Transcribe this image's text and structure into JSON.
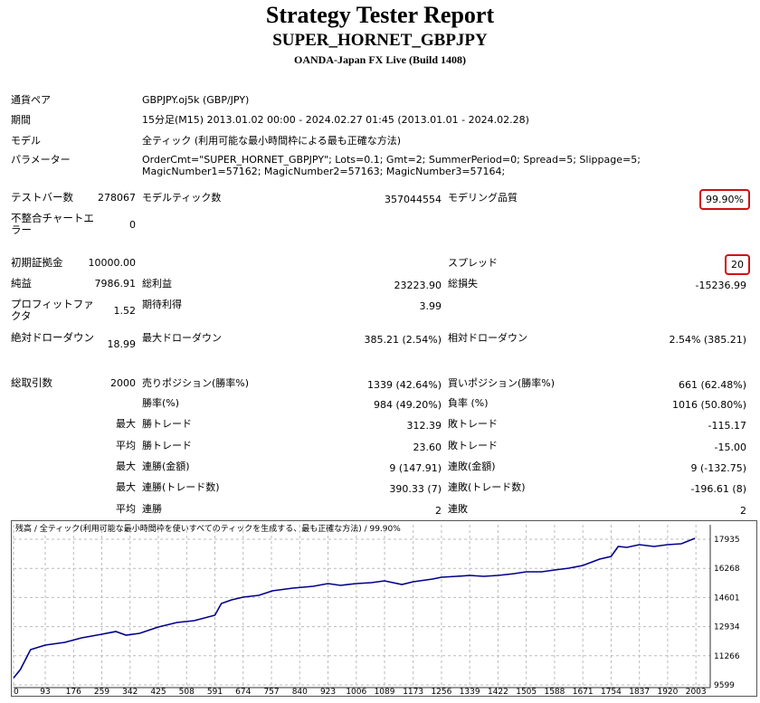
{
  "header": {
    "title": "Strategy Tester Report",
    "subtitle": "SUPER_HORNET_GBPJPY",
    "broker": "OANDA-Japan FX Live (Build 1408)"
  },
  "info": [
    {
      "label": "通貨ペア",
      "text": "GBPJPY.oj5k (GBP/JPY)"
    },
    {
      "label": "期間",
      "text": "15分足(M15) 2013.01.02 00:00 - 2024.02.27 01:45 (2013.01.01 - 2024.02.28)"
    },
    {
      "label": "モデル",
      "text": "全ティック (利用可能な最小時間枠による最も正確な方法)"
    },
    {
      "label": "パラメーター",
      "text": "OrderCmt=\"SUPER_HORNET_GBPJPY\"; Lots=0.1; Gmt=2; SummerPeriod=0; Spread=5; Slippage=5; MagicNumber1=57162; MagicNumber2=57163; MagicNumber3=57164;"
    }
  ],
  "stats": [
    {
      "label": "テストバー数",
      "value": "278067",
      "label2": "モデルティック数",
      "value2": "357044554",
      "label3": "モデリング品質",
      "value3": "99.90%"
    },
    {
      "label": "不整合チャートエラー",
      "value": "0"
    },
    {
      "label": "初期証拠金",
      "value": "10000.00",
      "label3": "スプレッド",
      "value3": "20"
    },
    {
      "label": "純益",
      "value": "7986.91",
      "label2": "総利益",
      "value2": "23223.90",
      "label3": "総損失",
      "value3": "-15236.99"
    },
    {
      "label": "プロフィットファクタ",
      "value": "1.52",
      "label2": "期待利得",
      "value2": "3.99"
    },
    {
      "label": "絶対ドローダウン",
      "value": "18.99",
      "label2": "最大ドローダウン",
      "value2": "385.21 (2.54%)",
      "label3": "相対ドローダウン",
      "value3": "2.54% (385.21)"
    },
    {
      "label": "総取引数",
      "value": "2000",
      "label2": "売りポジション(勝率%)",
      "value2": "1339 (42.64%)",
      "label3": "買いポジション(勝率%)",
      "value3": "661 (62.48%)"
    },
    {
      "label2": "勝率(%)",
      "value2": "984 (49.20%)",
      "label3": "負率 (%)",
      "value3": "1016 (50.80%)"
    },
    {
      "value": "最大",
      "label2": "勝トレード",
      "value2": "312.39",
      "label3": "敗トレード",
      "value3": "-115.17"
    },
    {
      "value": "平均",
      "label2": "勝トレード",
      "value2": "23.60",
      "label3": "敗トレード",
      "value3": "-15.00"
    },
    {
      "value": "最大",
      "label2": "連勝(金額)",
      "value2": "9 (147.91)",
      "label3": "連敗(金額)",
      "value3": "9 (-132.75)"
    },
    {
      "value": "最大",
      "label2": "連勝(トレード数)",
      "value2": "390.33 (7)",
      "label3": "連敗(トレード数)",
      "value3": "-196.61 (8)"
    },
    {
      "value": "平均",
      "label2": "連勝",
      "value2": "2",
      "label3": "連敗",
      "value3": "2"
    }
  ],
  "chart_data": {
    "type": "line",
    "title": "残高 / 全ティック(利用可能な最小時間枠を使いすべてのティックを生成する、最も正確な方法) / 99.90%",
    "x": [
      0,
      20,
      50,
      93,
      150,
      200,
      259,
      300,
      330,
      370,
      425,
      480,
      530,
      591,
      610,
      640,
      674,
      720,
      760,
      820,
      880,
      923,
      960,
      1006,
      1050,
      1089,
      1140,
      1173,
      1230,
      1256,
      1300,
      1339,
      1380,
      1422,
      1470,
      1505,
      1550,
      1588,
      1630,
      1671,
      1720,
      1754,
      1775,
      1800,
      1837,
      1880,
      1920,
      1960,
      1980,
      2000
    ],
    "series": [
      {
        "color": "#00008b",
        "values": [
          10000,
          10480,
          11619,
          11878,
          12033,
          12292,
          12499,
          12654,
          12447,
          12551,
          12913,
          13172,
          13276,
          13587,
          14260,
          14467,
          14622,
          14726,
          14985,
          15140,
          15244,
          15399,
          15296,
          15399,
          15451,
          15555,
          15348,
          15503,
          15658,
          15762,
          15814,
          15865,
          15814,
          15865,
          15969,
          16073,
          16073,
          16176,
          16280,
          16435,
          16798,
          16953,
          17523,
          17471,
          17626,
          17523,
          17626,
          17678,
          17830,
          17987
        ]
      }
    ],
    "xlim": [
      0,
      2045
    ],
    "ylim": [
      9444,
      18764
    ],
    "xticks": [
      0,
      93,
      176,
      259,
      342,
      425,
      508,
      591,
      674,
      757,
      840,
      923,
      1006,
      1089,
      1173,
      1256,
      1339,
      1422,
      1505,
      1588,
      1671,
      1754,
      1837,
      1920,
      2003
    ],
    "yticks": [
      9599,
      11266,
      12934,
      14601,
      16268,
      17935
    ],
    "grid": true
  }
}
